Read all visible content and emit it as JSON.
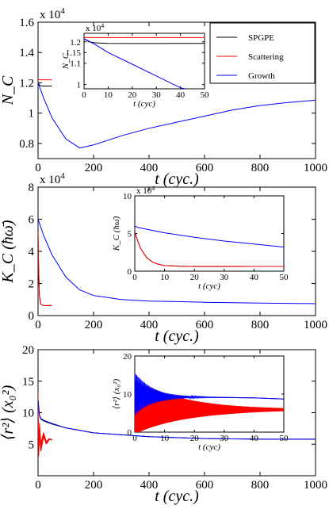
{
  "legend": {
    "entries": [
      {
        "name": "SPGPE",
        "color": "#000000"
      },
      {
        "name": "Scattering",
        "color": "#ff0000"
      },
      {
        "name": "Growth",
        "color": "#0000ff"
      }
    ]
  },
  "chart_data": [
    {
      "type": "line",
      "ylabel": "N_C",
      "xlabel": "t (cyc.)",
      "xlim": [
        0,
        1000
      ],
      "ylim": [
        7000,
        16000
      ],
      "xticks": [
        0,
        200,
        400,
        600,
        800,
        1000
      ],
      "yticks": [
        8000,
        10000,
        12000,
        14000,
        16000
      ],
      "ytick_labels": [
        "0.8",
        "1",
        "1.2",
        "1.4",
        "1.6"
      ],
      "y_multiplier": "x 10^4",
      "series": [
        {
          "name": "SPGPE",
          "color": "#000000",
          "x": [
            0,
            5,
            10,
            20,
            30,
            50
          ],
          "y": [
            12000,
            11850,
            11800,
            11780,
            11790,
            11790
          ]
        },
        {
          "name": "Scattering",
          "color": "#ff0000",
          "x": [
            0,
            10,
            20,
            30,
            50
          ],
          "y": [
            12200,
            12200,
            12200,
            12200,
            12200
          ]
        },
        {
          "name": "Growth",
          "color": "#0000ff",
          "x": [
            0,
            20,
            50,
            100,
            150,
            200,
            300,
            400,
            500,
            600,
            700,
            800,
            900,
            1000
          ],
          "y": [
            12000,
            11000,
            9700,
            8300,
            7700,
            7900,
            8500,
            9000,
            9400,
            9800,
            10200,
            10500,
            10700,
            10850
          ]
        }
      ],
      "inset": {
        "xlabel": "t (cyc)",
        "ylabel": "N_C",
        "xlim": [
          0,
          50
        ],
        "ylim": [
          9800,
          12400
        ],
        "xticks": [
          0,
          10,
          20,
          30,
          40,
          50
        ],
        "yticks": [
          10000,
          11000,
          11500,
          12000
        ],
        "ytick_labels": [
          "1",
          "1.1",
          "1.15",
          "1.2"
        ],
        "y_multiplier": "x 10^4",
        "series": [
          {
            "name": "SPGPE",
            "color": "#000000",
            "x": [
              0,
              2,
              5,
              10,
              20,
              30,
              40,
              50
            ],
            "y": [
              12150,
              12000,
              11950,
              11930,
              11920,
              11920,
              11930,
              11930
            ]
          },
          {
            "name": "Scattering",
            "color": "#ff0000",
            "x": [
              0,
              10,
              20,
              30,
              40,
              50
            ],
            "y": [
              12200,
              12200,
              12200,
              12200,
              12200,
              12200
            ]
          },
          {
            "name": "Growth",
            "color": "#0000ff",
            "x": [
              0,
              5,
              10,
              20,
              30,
              40,
              42
            ],
            "y": [
              12150,
              11850,
              11500,
              10950,
              10400,
              9850,
              9800
            ]
          }
        ]
      }
    },
    {
      "type": "line",
      "ylabel": "K_C (ħω̄)",
      "xlabel": "t (cyc.)",
      "xlim": [
        0,
        1000
      ],
      "ylim": [
        0,
        80000
      ],
      "xticks": [
        0,
        200,
        400,
        600,
        800,
        1000
      ],
      "yticks": [
        0,
        20000,
        40000,
        60000,
        80000
      ],
      "ytick_labels": [
        "0",
        "2",
        "4",
        "6",
        "8"
      ],
      "y_multiplier": "x 10^4",
      "series": [
        {
          "name": "SPGPE",
          "color": "#000000",
          "x": [
            0,
            2,
            5,
            10,
            20,
            30,
            50
          ],
          "y": [
            52000,
            30000,
            12000,
            7000,
            6200,
            6200,
            6300
          ]
        },
        {
          "name": "Scattering",
          "color": "#ff0000",
          "x": [
            0,
            2,
            5,
            10,
            20,
            30,
            50
          ],
          "y": [
            52000,
            30000,
            12000,
            7000,
            6200,
            6200,
            6300
          ]
        },
        {
          "name": "Growth",
          "color": "#0000ff",
          "x": [
            0,
            20,
            50,
            100,
            150,
            200,
            300,
            400,
            500,
            600,
            700,
            800,
            900,
            1000
          ],
          "y": [
            60000,
            50000,
            38000,
            24000,
            16000,
            12500,
            10000,
            9000,
            8700,
            8300,
            8000,
            7800,
            7600,
            7400
          ]
        }
      ],
      "inset": {
        "xlabel": "t (cyc)",
        "ylabel": "K_C (ħω̄)",
        "xlim": [
          0,
          50
        ],
        "ylim": [
          0,
          100000
        ],
        "xticks": [
          0,
          10,
          20,
          30,
          40,
          50
        ],
        "yticks": [
          0,
          50000,
          100000
        ],
        "ytick_labels": [
          "0",
          "5",
          "10"
        ],
        "y_multiplier": "x 10^4",
        "series": [
          {
            "name": "SPGPE",
            "color": "#000000",
            "x": [
              0,
              1,
              2,
              4,
              6,
              8,
              10,
              15,
              20,
              30,
              40,
              50
            ],
            "y": [
              52000,
              40000,
              30000,
              18000,
              12000,
              9000,
              7500,
              6500,
              6200,
              6200,
              6300,
              6300
            ]
          },
          {
            "name": "Scattering",
            "color": "#ff0000",
            "x": [
              0,
              1,
              2,
              4,
              6,
              8,
              10,
              15,
              20,
              30,
              40,
              50
            ],
            "y": [
              52000,
              40000,
              30000,
              18000,
              12000,
              9000,
              7500,
              6500,
              6200,
              6200,
              6300,
              6300
            ]
          },
          {
            "name": "Growth",
            "color": "#0000ff",
            "x": [
              0,
              1,
              10,
              20,
              30,
              40,
              50
            ],
            "y": [
              60000,
              58000,
              51000,
              45000,
              40000,
              36000,
              32000
            ]
          }
        ]
      }
    },
    {
      "type": "line",
      "ylabel": "⟨r²⟩ (x₀²)",
      "xlabel": "t (cyc.)",
      "xlim": [
        0,
        1000
      ],
      "ylim": [
        0,
        20
      ],
      "xticks": [
        0,
        200,
        400,
        600,
        800,
        1000
      ],
      "yticks": [
        5,
        10,
        15,
        20
      ],
      "ytick_labels": [
        "5",
        "10",
        "15",
        "20"
      ],
      "series": [
        {
          "name": "SPGPE",
          "color": "#000000",
          "x": [
            0,
            5,
            10,
            20,
            50,
            100,
            200,
            400,
            600,
            800,
            1000
          ],
          "y": [
            12,
            9.5,
            9.0,
            8.7,
            8.2,
            7.6,
            6.8,
            6.2,
            5.9,
            5.8,
            5.8
          ]
        },
        {
          "name": "Scattering",
          "color": "#ff0000",
          "x": [
            0,
            2,
            5,
            10,
            20,
            30,
            40,
            50
          ],
          "y": [
            12,
            4,
            7.5,
            4.5,
            6.5,
            5.2,
            5.8,
            5.7
          ]
        },
        {
          "name": "Growth",
          "color": "#0000ff",
          "x": [
            0,
            5,
            10,
            20,
            50,
            100,
            200,
            400,
            600,
            800,
            1000
          ],
          "y": [
            12,
            9.6,
            9.1,
            8.8,
            8.3,
            7.6,
            6.8,
            6.2,
            5.9,
            5.8,
            5.8
          ]
        }
      ],
      "inset": {
        "xlabel": "t (cyc)",
        "ylabel": "⟨r²⟩ (x₀²)",
        "xlim": [
          0,
          50
        ],
        "ylim": [
          0,
          20
        ],
        "xticks": [
          0,
          10,
          20,
          30,
          40,
          50
        ],
        "yticks": [
          0,
          10,
          20
        ],
        "ytick_labels": [
          "0",
          "10",
          "20"
        ],
        "series": [
          {
            "name": "SPGPE",
            "color": "#000000",
            "x": [
              0,
              5,
              10,
              20,
              30,
              40,
              50
            ],
            "y": [
              10,
              9.5,
              9.3,
              9.2,
              9.1,
              9.0,
              8.7
            ]
          },
          {
            "name": "Scattering",
            "color": "#ff0000",
            "x": [
              0,
              10,
              20,
              30,
              40,
              50
            ],
            "y": [
              6.5,
              6.2,
              6.0,
              5.9,
              5.9,
              5.9
            ]
          },
          {
            "name": "Growth",
            "color": "#0000ff",
            "x": [
              0,
              5,
              10,
              20,
              30,
              40,
              50
            ],
            "y": [
              10,
              9.6,
              9.3,
              9.2,
              9.1,
              9.0,
              8.7
            ]
          }
        ]
      }
    }
  ]
}
